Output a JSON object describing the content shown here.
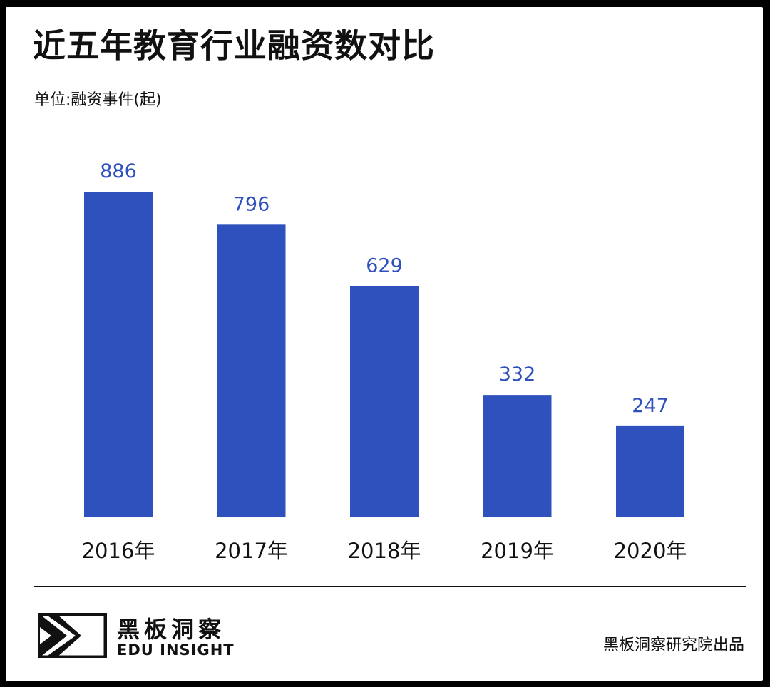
{
  "page": {
    "title": "近五年教育行业融资数对比",
    "unit_label": "单位:融资事件(起)",
    "brand_cn": "黑板洞察",
    "brand_en": "EDU INSIGHT",
    "source": "黑板洞察研究院出品",
    "logo_icon": "edu-insight-logo-icon"
  },
  "chart_data": {
    "type": "bar",
    "title": "近五年教育行业融资数对比",
    "ylabel": "单位:融资事件(起)",
    "xlabel": "",
    "categories": [
      "2016年",
      "2017年",
      "2018年",
      "2019年",
      "2020年"
    ],
    "values": [
      886,
      796,
      629,
      332,
      247
    ],
    "ylim": [
      0,
      886
    ],
    "grid": false,
    "data_labels": true,
    "colors": {
      "bar": "#2F51BE",
      "label": "#2F51BE",
      "axis_text": "#111111"
    }
  }
}
